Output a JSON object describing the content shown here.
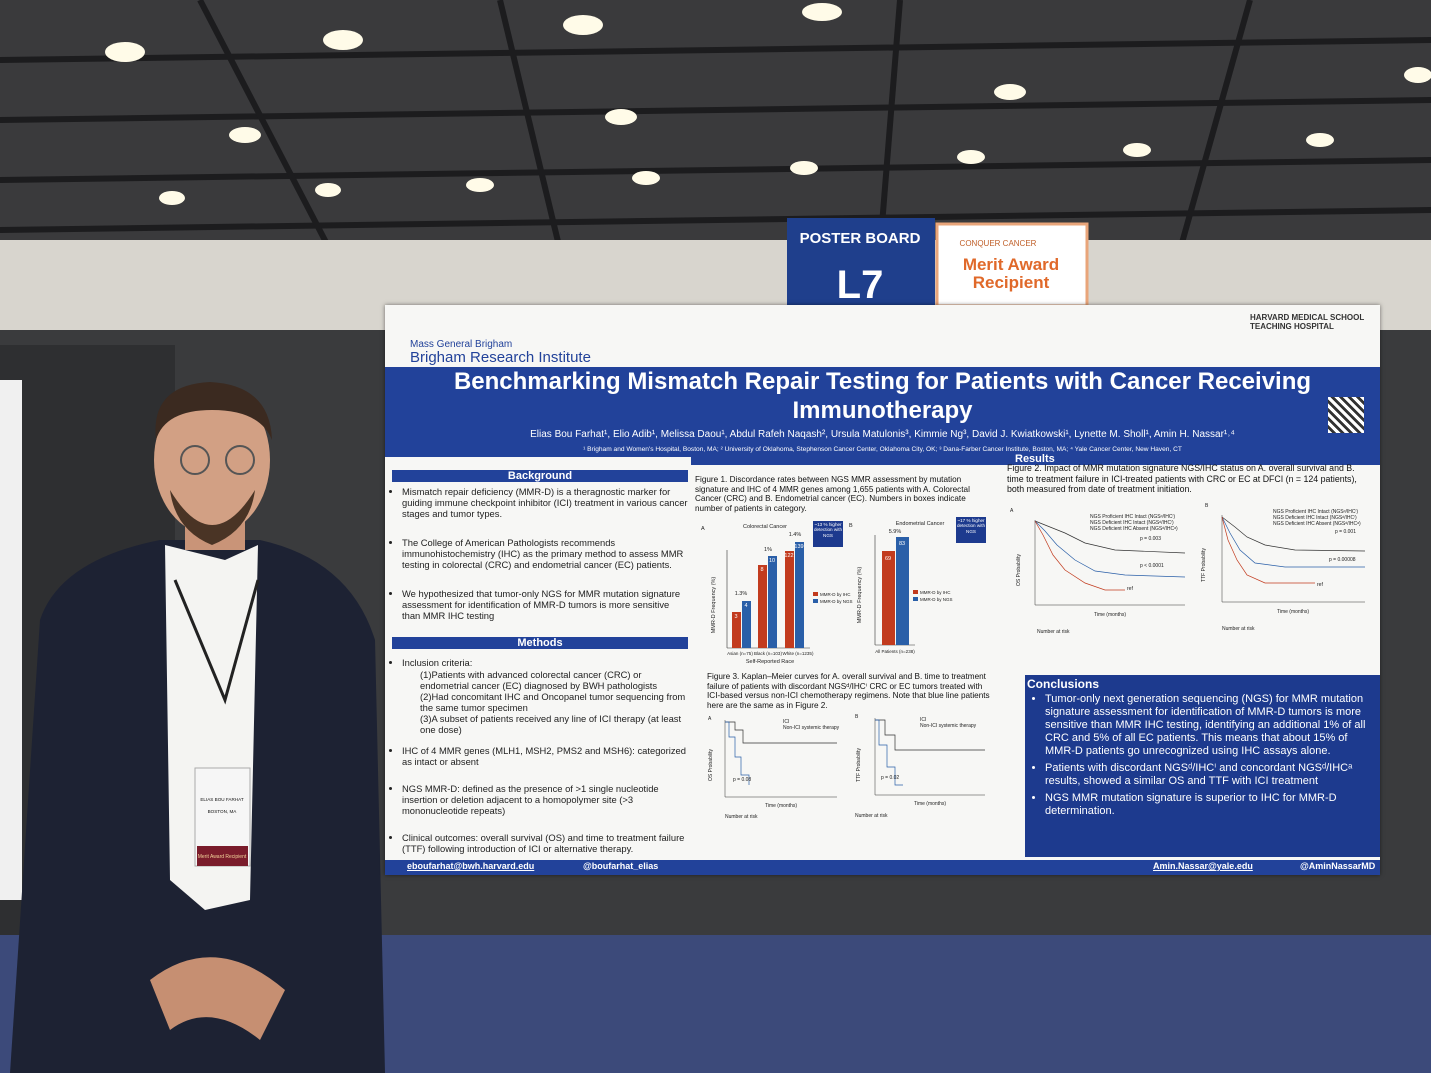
{
  "signs": {
    "poster_board": {
      "label": "POSTER BOARD",
      "number": "L7"
    },
    "award": {
      "org": "CONQUER CANCER",
      "line1": "Merit Award",
      "line2": "Recipient"
    }
  },
  "badge": {
    "name": "ELIAS BOU FARHAT",
    "city": "BOSTON, MA",
    "ribbon": "Merit Award Recipient"
  },
  "poster": {
    "org": "Mass General Brigham",
    "institute": "Brigham Research Institute",
    "hms": "HARVARD MEDICAL SCHOOL TEACHING HOSPITAL",
    "title": "Benchmarking Mismatch Repair Testing for Patients with Cancer Receiving Immunotherapy",
    "authors": "Elias Bou Farhat¹, Elio Adib¹, Melissa Daou¹, Abdul Rafeh Naqash², Ursula Matulonis³, Kimmie Ng³, David J. Kwiatkowski¹, Lynette M. Sholl¹, Amin H. Nassar¹˒⁴",
    "affiliations": "¹ Brigham and Women's Hospital, Boston, MA; ² University of Oklahoma, Stephenson Cancer Center, Oklahoma City, OK; ³ Dana-Farber Cancer Institute, Boston, MA; ⁴ Yale Cancer Center, New Haven, CT",
    "background": {
      "heading": "Background",
      "items": [
        "Mismatch repair deficiency (MMR-D) is a theragnostic marker for guiding immune checkpoint inhibitor (ICI) treatment in various cancer stages and tumor types.",
        "The College of American Pathologists recommends immunohistochemistry (IHC) as the primary method to assess MMR testing in colorectal (CRC) and endometrial cancer (EC) patients.",
        "We hypothesized that tumor-only NGS for MMR mutation signature assessment for identification of MMR-D tumors is more sensitive than MMR IHC testing"
      ]
    },
    "methods": {
      "heading": "Methods",
      "items": [
        "Inclusion criteria:",
        "(1)Patients with advanced colorectal cancer (CRC) or endometrial cancer (EC) diagnosed by BWH pathologists",
        "(2)Had concomitant IHC and Oncopanel tumor sequencing from the same tumor specimen",
        "(3)A subset of patients received any line of ICI therapy (at least one dose)",
        "IHC of 4 MMR genes (MLH1, MSH2, PMS2 and MSH6): categorized as intact or absent",
        "NGS MMR-D: defined as the presence of >1 single nucleotide insertion or deletion adjacent to a homopolymer site (>3 mononucleotide repeats)",
        "Clinical outcomes: overall survival (OS) and time to treatment failure (TTF) following introduction of ICI or alternative therapy."
      ]
    },
    "results": {
      "heading": "Results",
      "figure1": {
        "caption": "Figure 1. Discordance rates between NGS MMR assessment by mutation signature and IHC of 4 MMR genes among 1,655 patients with A. Colorectal Cancer (CRC) and B. Endometrial cancer (EC). Numbers in boxes indicate number of patients in category.",
        "panel_a": {
          "letter": "A",
          "title": "Colorectal Cancer",
          "note": "~13 % higher detection with NGS",
          "groups": [
            "Asian (n=75)",
            "Black (n=103)",
            "White (n=1235)"
          ],
          "x_label": "Self-Reported Race",
          "y_label": "MMR-D Frequency (%)",
          "bar_labels": [
            "3",
            "4",
            "8",
            "10",
            "122",
            "139"
          ],
          "diff_labels": [
            "1.3%",
            "1%",
            "1.4%"
          ]
        },
        "panel_b": {
          "letter": "B",
          "title": "Endometrial Cancer",
          "note": "~17 % higher detection with NGS",
          "groups": [
            "All Patients (n=238)"
          ],
          "y_label": "MMR-D Frequency (%)",
          "bar_labels": [
            "69",
            "83"
          ],
          "diff_labels": [
            "5.9%"
          ]
        },
        "legend": [
          "MMR-D by IHC",
          "MMR-D by NGS"
        ]
      },
      "figure2": {
        "caption": "Figure 2. Impact of MMR mutation signature NGS/IHC status on A. overall survival and B. time to treatment failure in ICI-treated patients with CRC or EC at DFCI (n = 124 patients), both measured from date of treatment initiation.",
        "legend": [
          "NGS Proficient IHC Intact (NGSᵖ/IHCⁱ)",
          "NGS Deficient IHC Intact (NGSᵈ/IHCⁱ)",
          "NGS Deficient IHC Absent (NGSᵈ/IHCᵃ)"
        ],
        "panel_a": {
          "letter": "A",
          "y_label": "OS Probability",
          "p1": "p = 0.003",
          "p2": "p < 0.0001",
          "ref": "ref"
        },
        "panel_b": {
          "letter": "B",
          "y_label": "TTF Probability",
          "p1": "p = 0.001",
          "p2": "p = 0.00008",
          "ref": "ref"
        },
        "x_label": "Time (months)",
        "risk": "Number at risk"
      },
      "figure3": {
        "caption": "Figure 3. Kaplan–Meier curves for A. overall survival and B. time to treatment failure of patients with discordant NGSᵈ/IHCⁱ CRC or EC tumors treated with ICI-based versus non-ICI chemotherapy regimens. Note that blue line patients here are the same as in Figure 2.",
        "legend": [
          "ICI",
          "Non-ICI systemic therapy"
        ],
        "panel_a": {
          "letter": "A",
          "y_label": "OS Probability",
          "p": "p = 0.08"
        },
        "panel_b": {
          "letter": "B",
          "y_label": "TTF Probability",
          "p": "p = 0.02"
        },
        "x_label": "Time (months)",
        "risk": "Number at risk"
      }
    },
    "conclusions": {
      "heading": "Conclusions",
      "items": [
        "Tumor-only next generation sequencing (NGS) for MMR mutation signature assessment for identification of MMR-D tumors is more sensitive than MMR IHC testing, identifying an additional 1% of all CRC and 5% of all EC patients. This means that about 15% of MMR-D patients go unrecognized using IHC assays alone.",
        "Patients with discordant NGSᵈ/IHCⁱ and concordant NGSᵈ/IHCᵃ results, showed a similar OS and TTF with ICI treatment",
        "NGS MMR mutation signature is superior to IHC for MMR-D determination."
      ]
    },
    "footer": [
      "eboufarhat@bwh.harvard.edu",
      "@boufarhat_elias",
      "Amin.Nassar@yale.edu",
      "@AminNassarMD"
    ]
  }
}
